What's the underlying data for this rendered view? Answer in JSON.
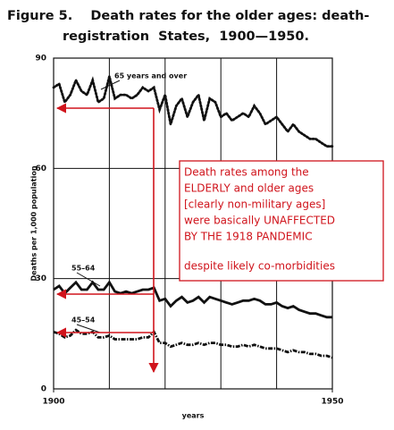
{
  "chart_data": {
    "type": "line",
    "title_lines": [
      "Figure 5.    Death rates for the older ages: death-",
      "registration  States,  1900—1950."
    ],
    "y_label": "Deaths per 1,000 population",
    "x_label": "years",
    "x": [
      1900,
      1901,
      1902,
      1903,
      1904,
      1905,
      1906,
      1907,
      1908,
      1909,
      1910,
      1911,
      1912,
      1913,
      1914,
      1915,
      1916,
      1917,
      1918,
      1919,
      1920,
      1921,
      1922,
      1923,
      1924,
      1925,
      1926,
      1927,
      1928,
      1929,
      1930,
      1931,
      1932,
      1933,
      1934,
      1935,
      1936,
      1937,
      1938,
      1939,
      1940,
      1941,
      1942,
      1943,
      1944,
      1945,
      1946,
      1947,
      1948,
      1949,
      1950
    ],
    "xlim": [
      1900,
      1950
    ],
    "xticks": [
      1900,
      1950
    ],
    "xgrid": [
      1910,
      1920,
      1930,
      1940
    ],
    "ylim": [
      0,
      90
    ],
    "yticks": [
      0,
      30,
      60,
      90
    ],
    "grid": true,
    "series": [
      {
        "name": "65 years and over",
        "color": "#111111",
        "style": "dotted",
        "values": [
          82,
          83,
          78,
          80,
          84,
          81,
          80,
          84,
          78,
          79,
          85,
          79,
          80,
          80,
          79,
          80,
          82,
          81,
          82,
          76,
          80,
          72,
          77,
          79,
          74,
          78,
          80,
          73,
          79,
          78,
          74,
          75,
          73,
          74,
          75,
          74,
          77,
          75,
          72,
          73,
          74,
          72,
          70,
          72,
          70,
          69,
          68,
          68,
          67,
          66,
          66
        ]
      },
      {
        "name": "55–64",
        "color": "#111111",
        "style": "solid",
        "values": [
          27,
          28,
          26,
          27.5,
          29,
          27,
          27,
          29,
          27,
          27,
          29,
          26.5,
          26,
          26.5,
          26,
          26.5,
          27,
          27,
          27.5,
          24,
          24.5,
          22.5,
          24,
          25,
          23.5,
          24,
          25,
          23.5,
          25,
          24.5,
          24,
          23.5,
          23,
          23.5,
          24,
          24,
          24.5,
          24,
          23,
          23,
          23.5,
          22.5,
          22,
          22.5,
          21.5,
          21,
          20.5,
          20.5,
          20,
          19.5,
          19.5
        ]
      },
      {
        "name": "45–54",
        "color": "#111111",
        "style": "dashed",
        "values": [
          15.5,
          15,
          14,
          14.5,
          16,
          15,
          15,
          15.5,
          14,
          14,
          14.5,
          13.5,
          13.5,
          13.5,
          13.5,
          13.5,
          14,
          14,
          15.5,
          12.5,
          12.5,
          11.5,
          12,
          12.5,
          12,
          12,
          12.5,
          12,
          12.5,
          12.5,
          12,
          12,
          11.5,
          11.5,
          12,
          11.5,
          12,
          11.5,
          11,
          11,
          11,
          10.5,
          10,
          10.5,
          10,
          10,
          9.5,
          9.5,
          9,
          9,
          8.5
        ]
      }
    ],
    "annotation": [
      "Death rates among the",
      "ELDERLY and older ages",
      "[clearly non-military ages]",
      "were basically UNAFFECTED",
      "BY THE 1918 PANDEMIC",
      "despite likely co-morbidities"
    ],
    "annotation_color": "#d0141c"
  }
}
